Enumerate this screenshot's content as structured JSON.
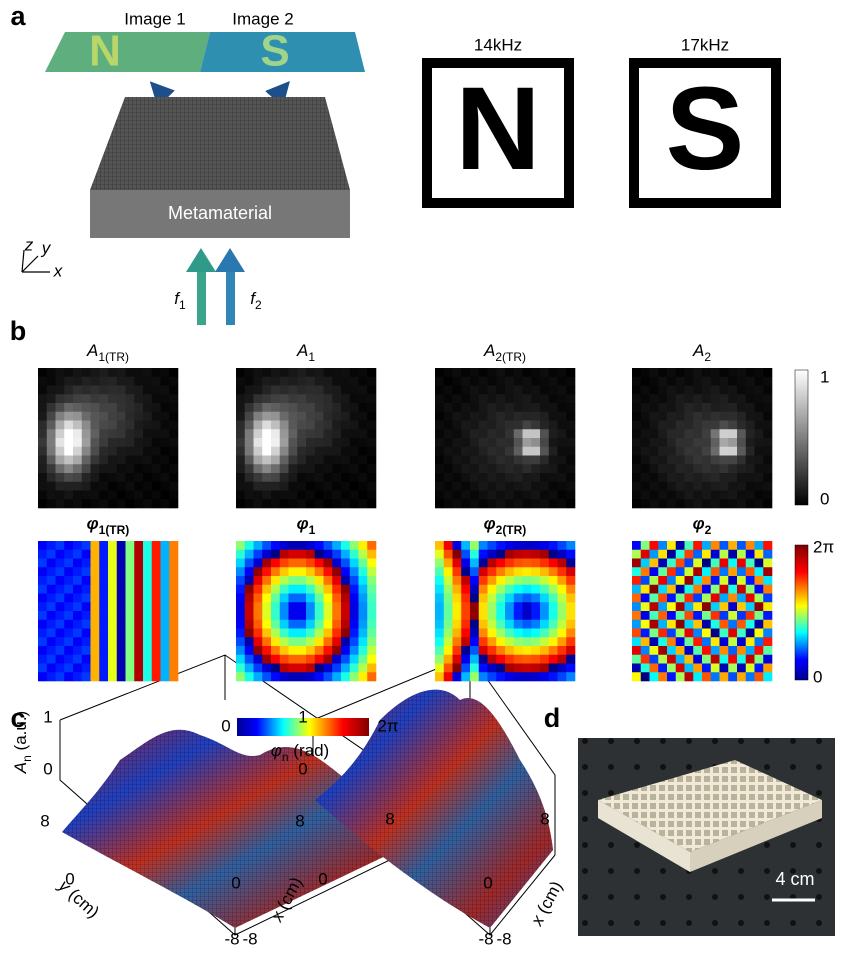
{
  "panel_a": {
    "label": "a",
    "images": [
      "Image 1",
      "Image 2"
    ],
    "block": "Metamaterial",
    "axes": [
      "z",
      "y",
      "x"
    ],
    "inputs": [
      {
        "base": "f",
        "sub": "1"
      },
      {
        "base": "f",
        "sub": "2"
      }
    ],
    "frames": [
      {
        "frequency": "14kHz",
        "letter": "N"
      },
      {
        "frequency": "17kHz",
        "letter": "S"
      }
    ]
  },
  "panel_b": {
    "label": "b",
    "amplitude_titles": [
      {
        "base": "A",
        "sub": "1(TR)"
      },
      {
        "base": "A",
        "sub": "1"
      },
      {
        "base": "A",
        "sub": "2(TR)"
      },
      {
        "base": "A",
        "sub": "2"
      }
    ],
    "amplitude_colorbar": [
      "1",
      "0"
    ],
    "phase_titles": [
      {
        "base": "φ",
        "sub": "1(TR)"
      },
      {
        "base": "φ",
        "sub": "1"
      },
      {
        "base": "φ",
        "sub": "2(TR)"
      },
      {
        "base": "φ",
        "sub": "2"
      }
    ],
    "phase_colorbar": [
      "2π",
      "0"
    ]
  },
  "panel_c": {
    "label": "c",
    "colorbar": {
      "min": "0",
      "max": "2π",
      "title": {
        "base": "φ",
        "sub": "n",
        "unit": " (rad)"
      }
    },
    "z_label": {
      "base": "A",
      "sub": "n",
      "unit": " (a.u.)"
    },
    "y_label": {
      "var": "y",
      "unit": " (cm)"
    },
    "x_label": {
      "var": "x",
      "unit": " (cm)"
    },
    "plots": [
      {
        "z_ticks": [
          "1",
          "0"
        ],
        "y_ticks": [
          "8",
          "0",
          "-8"
        ],
        "x_ticks": [
          "-8",
          "0",
          "8"
        ]
      },
      {
        "z_ticks": [
          "1",
          "0"
        ],
        "y_ticks": [
          "8",
          "0",
          "-8"
        ],
        "x_ticks": [
          "-8",
          "0",
          "8"
        ]
      }
    ]
  },
  "panel_d": {
    "label": "d",
    "scale_bar": "4 cm"
  }
}
